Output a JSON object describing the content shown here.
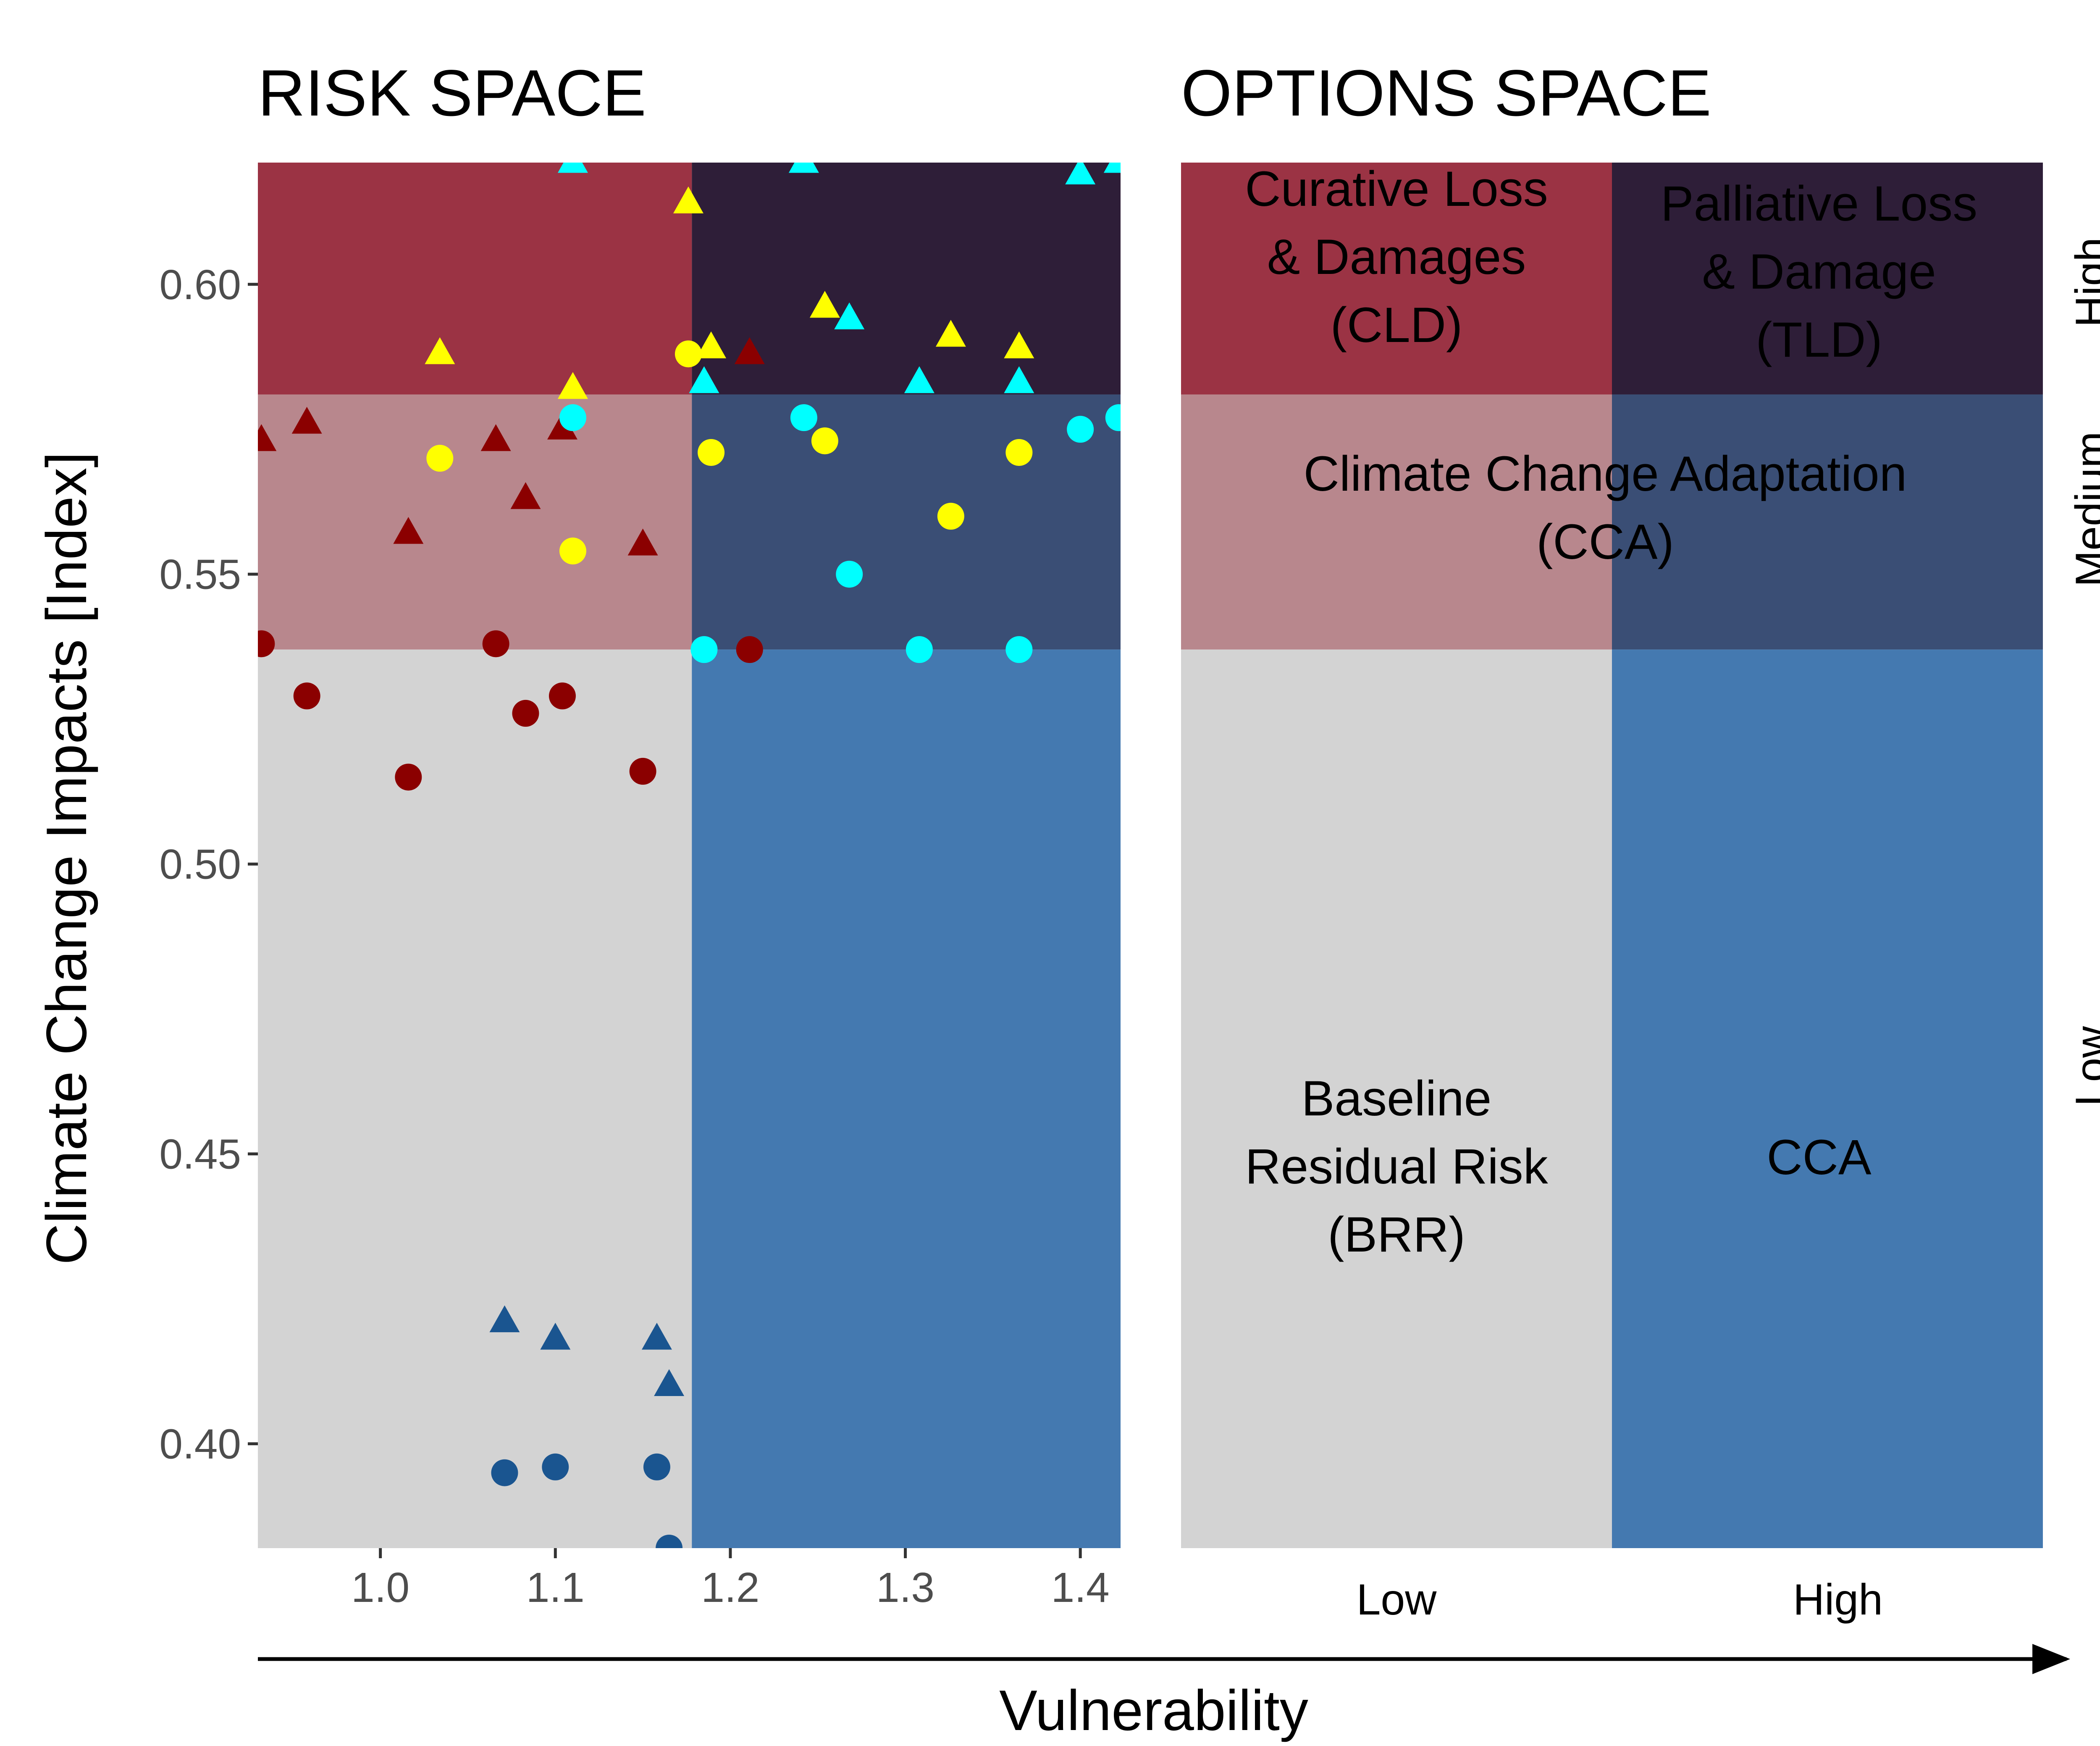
{
  "colors": {
    "zone_low_lowvuln": "#d3d3d3",
    "zone_low_highvuln": "#4479b0",
    "zone_medium_lowvuln": "#b8878d",
    "zone_medium_highvuln": "#3a4e75",
    "zone_high_lowvuln": "#9b3344",
    "zone_high_highvuln": "#2e1e38",
    "series_darkred": "#8b0000",
    "series_yellow": "#ffff00",
    "series_cyan": "#00ffff",
    "series_darkblue": "#1a5590"
  },
  "chart_data": [
    {
      "type": "scatter",
      "title": "RISK SPACE",
      "xlabel": "Vulnerability",
      "ylabel": "Climate Change Impacts [Index]",
      "xlim": [
        0.93,
        1.423
      ],
      "ylim": [
        0.382,
        0.621
      ],
      "x_ticks": [
        "1.0",
        "1.1",
        "1.2",
        "1.3",
        "1.4"
      ],
      "y_ticks": [
        "0.40",
        "0.45",
        "0.50",
        "0.55",
        "0.60"
      ],
      "grid": false,
      "legend": "none",
      "background_zones": {
        "vulnerability_split": 1.178,
        "impact_splits": [
          0.537,
          0.581
        ]
      },
      "series": [
        {
          "color": "series_darkred",
          "marker": "triangle",
          "points": [
            [
              0.932,
              0.573
            ],
            [
              0.958,
              0.576
            ],
            [
              1.016,
              0.557
            ],
            [
              1.066,
              0.573
            ],
            [
              1.083,
              0.563
            ],
            [
              1.104,
              0.575
            ],
            [
              1.15,
              0.555
            ],
            [
              1.211,
              0.588
            ]
          ]
        },
        {
          "color": "series_darkred",
          "marker": "circle",
          "points": [
            [
              0.932,
              0.538
            ],
            [
              0.958,
              0.529
            ],
            [
              1.016,
              0.515
            ],
            [
              1.066,
              0.538
            ],
            [
              1.083,
              0.526
            ],
            [
              1.104,
              0.529
            ],
            [
              1.15,
              0.516
            ],
            [
              1.211,
              0.537
            ]
          ]
        },
        {
          "color": "series_yellow",
          "marker": "triangle",
          "points": [
            [
              1.034,
              0.588
            ],
            [
              1.11,
              0.582
            ],
            [
              1.176,
              0.614
            ],
            [
              1.189,
              0.589
            ],
            [
              1.254,
              0.596
            ],
            [
              1.326,
              0.591
            ],
            [
              1.365,
              0.589
            ]
          ]
        },
        {
          "color": "series_yellow",
          "marker": "circle",
          "points": [
            [
              1.034,
              0.57
            ],
            [
              1.11,
              0.554
            ],
            [
              1.176,
              0.588
            ],
            [
              1.189,
              0.571
            ],
            [
              1.254,
              0.573
            ],
            [
              1.326,
              0.56
            ],
            [
              1.365,
              0.571
            ]
          ]
        },
        {
          "color": "series_cyan",
          "marker": "triangle",
          "points": [
            [
              1.11,
              0.621
            ],
            [
              1.185,
              0.583
            ],
            [
              1.242,
              0.621
            ],
            [
              1.268,
              0.594
            ],
            [
              1.308,
              0.583
            ],
            [
              1.365,
              0.583
            ],
            [
              1.4,
              0.619
            ],
            [
              1.422,
              0.621
            ]
          ]
        },
        {
          "color": "series_cyan",
          "marker": "circle",
          "points": [
            [
              1.11,
              0.577
            ],
            [
              1.185,
              0.537
            ],
            [
              1.242,
              0.577
            ],
            [
              1.268,
              0.55
            ],
            [
              1.308,
              0.537
            ],
            [
              1.365,
              0.537
            ],
            [
              1.4,
              0.575
            ],
            [
              1.422,
              0.577
            ]
          ]
        },
        {
          "color": "series_darkblue",
          "marker": "triangle",
          "points": [
            [
              1.071,
              0.421
            ],
            [
              1.1,
              0.418
            ],
            [
              1.158,
              0.418
            ],
            [
              1.165,
              0.41
            ]
          ]
        },
        {
          "color": "series_darkblue",
          "marker": "circle",
          "points": [
            [
              1.071,
              0.395
            ],
            [
              1.1,
              0.396
            ],
            [
              1.158,
              0.396
            ],
            [
              1.165,
              0.382
            ]
          ]
        }
      ]
    },
    {
      "type": "heatmap",
      "title": "OPTIONS SPACE",
      "x_categories": [
        "Low",
        "High"
      ],
      "y_categories": [
        "Low",
        "Medium",
        "High"
      ],
      "cells": [
        {
          "vuln": "Low",
          "impact": "High",
          "color": "zone_high_lowvuln",
          "lines": [
            "Curative Loss",
            "& Damages",
            "(CLD)"
          ]
        },
        {
          "vuln": "High",
          "impact": "High",
          "color": "zone_high_highvuln",
          "lines": [
            "Palliative Loss",
            "& Damage",
            "(TLD)"
          ]
        },
        {
          "vuln": "Low",
          "impact": "Medium",
          "color": "zone_medium_lowvuln",
          "lines": []
        },
        {
          "vuln": "High",
          "impact": "Medium",
          "color": "zone_medium_highvuln",
          "lines": []
        },
        {
          "vuln": "Low",
          "impact": "Low",
          "color": "zone_low_lowvuln",
          "lines": [
            "Baseline",
            "Residual Risk",
            "(BRR)"
          ]
        },
        {
          "vuln": "High",
          "impact": "Low",
          "color": "zone_low_highvuln",
          "lines": [
            "CCA"
          ]
        }
      ],
      "spanning_label": [
        "Climate Change Adaptation",
        "(CCA)"
      ]
    }
  ]
}
